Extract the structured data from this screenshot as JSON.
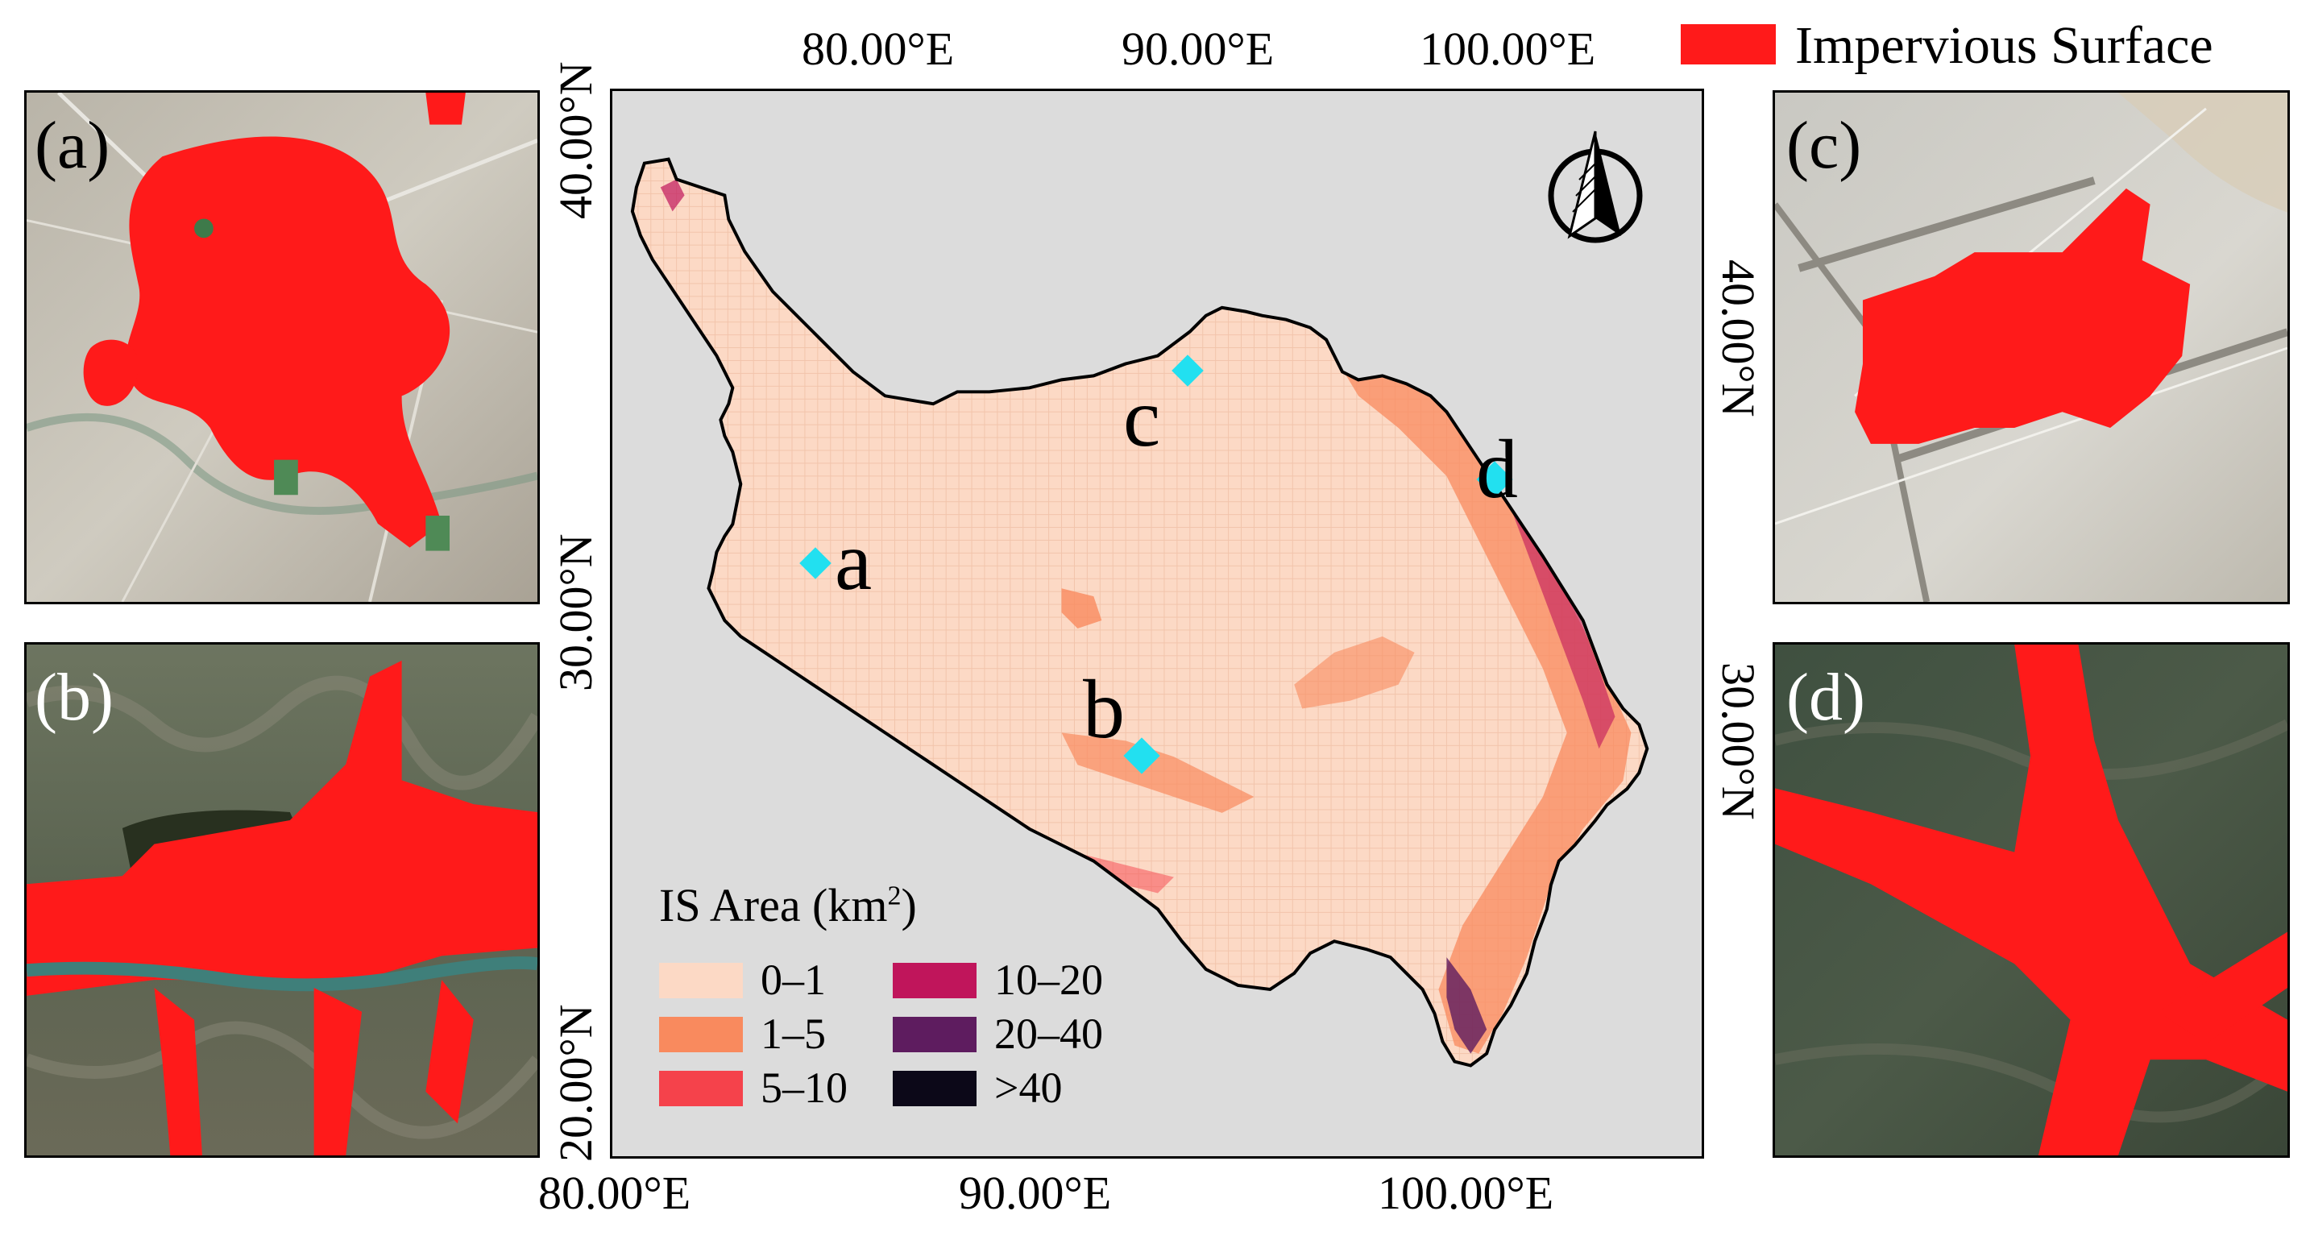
{
  "legend_top": {
    "label": "Impervious Surface",
    "color": "#ff1a1a"
  },
  "panels": {
    "a": {
      "label": "(a)"
    },
    "b": {
      "label": "(b)"
    },
    "c": {
      "label": "(c)"
    },
    "d": {
      "label": "(d)"
    }
  },
  "map": {
    "background": "#dcdcdc",
    "top_lon_labels": [
      "80.00°E",
      "90.00°E",
      "100.00°E"
    ],
    "bottom_lon_labels": [
      "80.00°E",
      "90.00°E",
      "100.00°E"
    ],
    "left_lat_labels": [
      "40.00°N",
      "30.00°N",
      "20.00°N"
    ],
    "right_lat_labels": [
      "40.00°N",
      "30.00°N"
    ],
    "sites": [
      "a",
      "b",
      "c",
      "d"
    ],
    "site_color": "#22e0f0",
    "north_arrow_icon": "north-arrow-icon"
  },
  "legend": {
    "title": "IS Area (km",
    "title_sup": "2",
    "title_end": ")",
    "classes": [
      {
        "label": "0–1",
        "color": "#fcd9c5"
      },
      {
        "label": "1–5",
        "color": "#f98a5e"
      },
      {
        "label": "5–10",
        "color": "#f5424b"
      },
      {
        "label": "10–20",
        "color": "#c0155b"
      },
      {
        "label": "20–40",
        "color": "#5e1c5f"
      },
      {
        "label": ">40",
        "color": "#0c0818"
      }
    ]
  }
}
